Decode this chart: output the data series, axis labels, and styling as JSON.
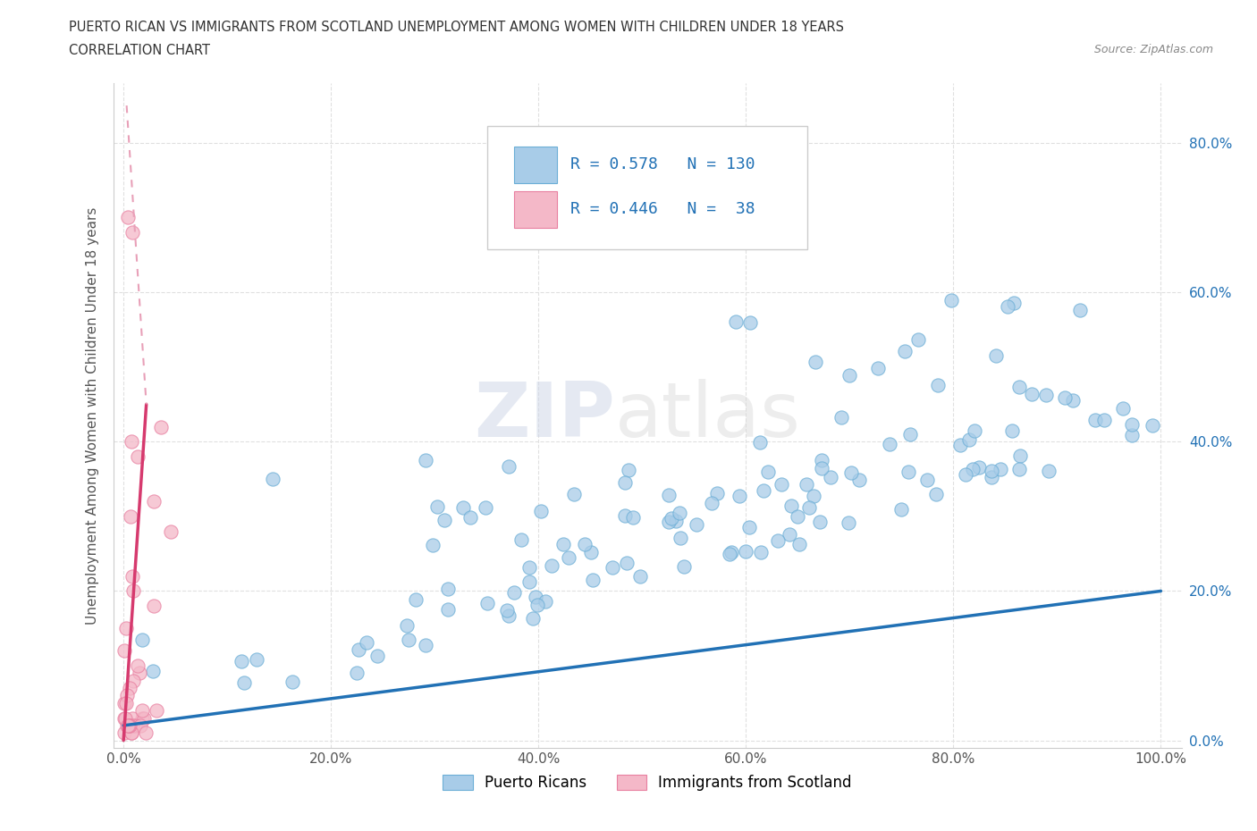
{
  "title_line1": "PUERTO RICAN VS IMMIGRANTS FROM SCOTLAND UNEMPLOYMENT AMONG WOMEN WITH CHILDREN UNDER 18 YEARS",
  "title_line2": "CORRELATION CHART",
  "source": "Source: ZipAtlas.com",
  "ylabel_label": "Unemployment Among Women with Children Under 18 years",
  "watermark_zip": "ZIP",
  "watermark_atlas": "atlas",
  "blue_R": 0.578,
  "blue_N": 130,
  "pink_R": 0.446,
  "pink_N": 38,
  "blue_color": "#a8cce8",
  "blue_edge_color": "#6baed6",
  "pink_color": "#f4b8c8",
  "pink_edge_color": "#e87fa0",
  "blue_line_color": "#2171b5",
  "pink_line_color": "#d63a6e",
  "pink_dash_color": "#e8a0b8",
  "legend_blue_label": "Puerto Ricans",
  "legend_pink_label": "Immigrants from Scotland",
  "right_tick_color": "#2171b5",
  "left_tick_color": "#555555",
  "background_color": "#ffffff",
  "grid_color": "#e0e0e0",
  "title_color": "#333333",
  "source_color": "#888888"
}
